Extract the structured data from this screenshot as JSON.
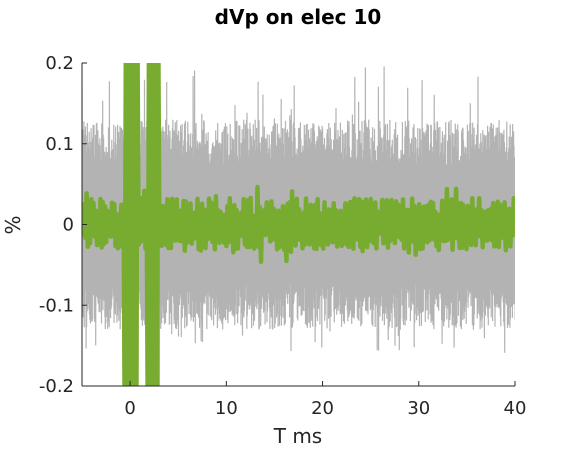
{
  "chart_data": {
    "type": "line",
    "title": "dVp on elec 10",
    "xlabel": "T ms",
    "ylabel": "%",
    "xlim": [
      -5,
      40
    ],
    "ylim": [
      -0.2,
      0.2
    ],
    "xticks": [
      0,
      10,
      20,
      30,
      40
    ],
    "xtick_labels": [
      "0",
      "10",
      "20",
      "30",
      "40"
    ],
    "yticks": [
      -0.2,
      -0.1,
      0,
      0.1,
      0.2
    ],
    "ytick_labels": [
      "-0.2",
      "-0.1",
      "0",
      "0.1",
      "0.2"
    ],
    "grid": false,
    "legend": "none",
    "series": [
      {
        "style": "gray band (individual trials)",
        "color": "#b3b3b3",
        "envelope_upper": 0.13,
        "envelope_lower": -0.13,
        "peak_upper": 0.2,
        "peak_lower": -0.16
      },
      {
        "style": "green mean",
        "color": "#77ac30",
        "amplitude": 0.03,
        "stimulus_artifact": [
          {
            "x_start": -0.6,
            "x_end": 0.8,
            "y_min": -0.2,
            "y_max": 0.2
          },
          {
            "x_start": 1.8,
            "x_end": 3.0,
            "y_min": -0.2,
            "y_max": 0.2
          }
        ]
      }
    ]
  }
}
